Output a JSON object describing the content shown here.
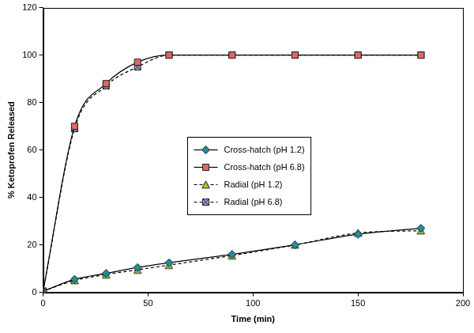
{
  "chart_data": {
    "type": "line",
    "x_label": "Time (min)",
    "y_label": "% Ketoprofen Released",
    "x": [
      0,
      15,
      30,
      45,
      60,
      90,
      120,
      150,
      180
    ],
    "series": [
      {
        "name": "Cross-hatch (pH 1.2)",
        "color": "#1f8fa0",
        "marker": "diamond",
        "line_style": "solid",
        "values": [
          0.5,
          5.5,
          8,
          10.5,
          12.5,
          16,
          20,
          24.5,
          27
        ]
      },
      {
        "name": "Cross-hatch (pH 6.8)",
        "color": "#e06666",
        "marker": "square",
        "line_style": "solid",
        "values": [
          0.5,
          70,
          88,
          97,
          100,
          100,
          100,
          100,
          100
        ]
      },
      {
        "name": "Radial (pH 1.2)",
        "color": "#a8c832",
        "marker": "triangle",
        "line_style": "dashed",
        "values": [
          0.5,
          5,
          7.5,
          9.5,
          11.5,
          15.5,
          20,
          25,
          26
        ]
      },
      {
        "name": "Radial (pH 6.8)",
        "color": "#9999dd",
        "marker": "square-x",
        "line_style": "dashed",
        "values": [
          0.5,
          69,
          87,
          95,
          100,
          100,
          100,
          100,
          100
        ]
      }
    ],
    "xlim": [
      0,
      200
    ],
    "xticks": [
      0,
      50,
      100,
      150,
      200
    ],
    "ylim": [
      0,
      120
    ],
    "yticks": [
      0,
      20,
      40,
      60,
      80,
      100,
      120
    ],
    "grid": false,
    "legend": "center"
  }
}
